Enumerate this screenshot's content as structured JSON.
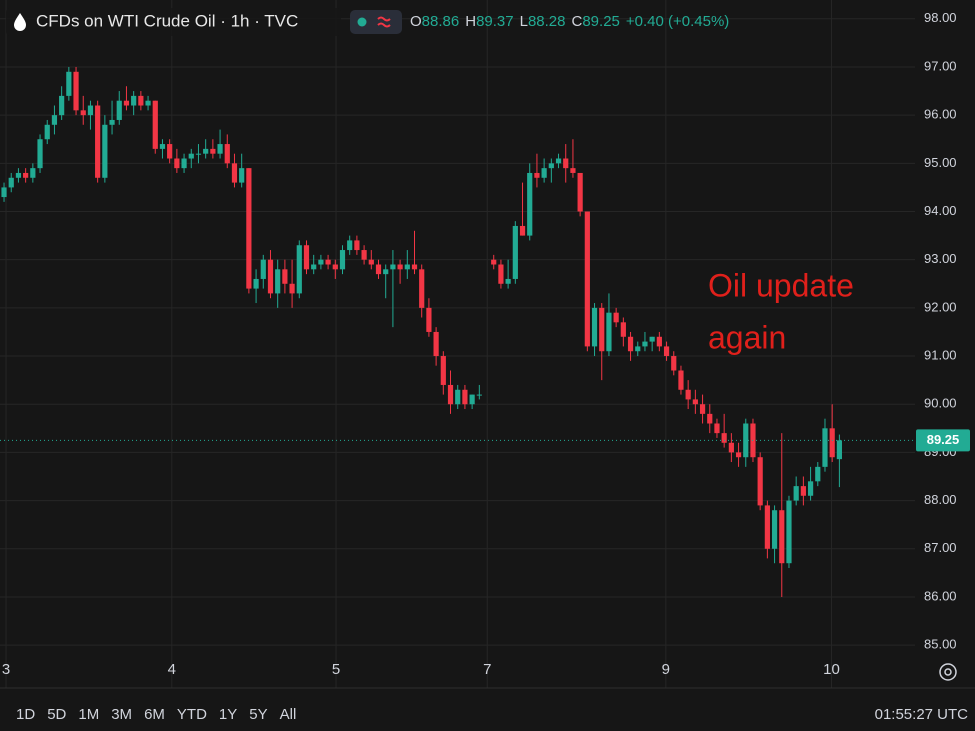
{
  "chart_data": {
    "type": "candlestick",
    "title": "CFDs on WTI Crude Oil · 1h · TVC",
    "ohlc_labels": [
      "O",
      "H",
      "L",
      "C"
    ],
    "change_label": "+0.40 (+0.45%)",
    "annotation": "Oil update again",
    "up_color": "#22ab94",
    "down_color": "#f23645",
    "candles": [
      [
        94.3,
        94.6,
        94.2,
        94.5
      ],
      [
        94.5,
        94.8,
        94.4,
        94.7
      ],
      [
        94.7,
        94.9,
        94.6,
        94.8
      ],
      [
        94.8,
        94.9,
        94.6,
        94.7
      ],
      [
        94.7,
        95.0,
        94.6,
        94.9
      ],
      [
        94.9,
        95.6,
        94.8,
        95.5
      ],
      [
        95.5,
        95.9,
        95.4,
        95.8
      ],
      [
        95.8,
        96.2,
        95.6,
        96.0
      ],
      [
        96.0,
        96.6,
        95.9,
        96.4
      ],
      [
        96.4,
        97.0,
        96.3,
        96.9
      ],
      [
        96.9,
        97.0,
        96.0,
        96.1
      ],
      [
        96.1,
        96.4,
        95.8,
        96.0
      ],
      [
        96.0,
        96.3,
        95.7,
        96.2
      ],
      [
        96.2,
        96.3,
        94.6,
        94.7
      ],
      [
        94.7,
        96.0,
        94.6,
        95.8
      ],
      [
        95.8,
        96.3,
        95.6,
        95.9
      ],
      [
        95.9,
        96.5,
        95.8,
        96.3
      ],
      [
        96.3,
        96.6,
        96.1,
        96.2
      ],
      [
        96.2,
        96.5,
        96.0,
        96.4
      ],
      [
        96.4,
        96.5,
        96.1,
        96.2
      ],
      [
        96.2,
        96.4,
        96.1,
        96.3
      ],
      [
        96.3,
        96.3,
        95.2,
        95.3
      ],
      [
        95.3,
        95.5,
        95.1,
        95.4
      ],
      [
        95.4,
        95.5,
        95.0,
        95.1
      ],
      [
        95.1,
        95.3,
        94.8,
        94.9
      ],
      [
        94.9,
        95.2,
        94.8,
        95.1
      ],
      [
        95.1,
        95.3,
        94.9,
        95.2
      ],
      [
        95.2,
        95.4,
        95.0,
        95.2
      ],
      [
        95.2,
        95.5,
        95.1,
        95.3
      ],
      [
        95.3,
        95.5,
        95.1,
        95.2
      ],
      [
        95.2,
        95.7,
        95.1,
        95.4
      ],
      [
        95.4,
        95.6,
        94.9,
        95.0
      ],
      [
        95.0,
        95.2,
        94.5,
        94.6
      ],
      [
        94.6,
        95.2,
        94.5,
        94.9
      ],
      [
        94.9,
        94.9,
        92.3,
        92.4
      ],
      [
        92.4,
        92.8,
        92.1,
        92.6
      ],
      [
        92.6,
        93.1,
        92.4,
        93.0
      ],
      [
        93.0,
        93.2,
        92.2,
        92.3
      ],
      [
        92.3,
        93.0,
        92.0,
        92.8
      ],
      [
        92.8,
        93.0,
        92.3,
        92.5
      ],
      [
        92.5,
        93.0,
        92.0,
        92.3
      ],
      [
        92.3,
        93.4,
        92.2,
        93.3
      ],
      [
        93.3,
        93.4,
        92.7,
        92.8
      ],
      [
        92.8,
        93.1,
        92.7,
        92.9
      ],
      [
        92.9,
        93.1,
        92.8,
        93.0
      ],
      [
        93.0,
        93.1,
        92.8,
        92.9
      ],
      [
        92.9,
        93.0,
        92.6,
        92.8
      ],
      [
        92.8,
        93.3,
        92.7,
        93.2
      ],
      [
        93.2,
        93.5,
        93.1,
        93.4
      ],
      [
        93.4,
        93.5,
        93.1,
        93.2
      ],
      [
        93.2,
        93.3,
        92.9,
        93.0
      ],
      [
        93.0,
        93.2,
        92.8,
        92.9
      ],
      [
        92.9,
        93.0,
        92.6,
        92.7
      ],
      [
        92.7,
        92.9,
        92.2,
        92.8
      ],
      [
        92.8,
        93.2,
        91.6,
        92.9
      ],
      [
        92.9,
        93.0,
        92.5,
        92.8
      ],
      [
        92.8,
        93.2,
        92.6,
        92.9
      ],
      [
        92.9,
        93.6,
        92.7,
        92.8
      ],
      [
        92.8,
        92.9,
        91.8,
        92.0
      ],
      [
        92.0,
        92.2,
        91.4,
        91.5
      ],
      [
        91.5,
        91.6,
        90.8,
        91.0
      ],
      [
        91.0,
        91.1,
        90.2,
        90.4
      ],
      [
        90.4,
        90.7,
        89.8,
        90.0
      ],
      [
        90.0,
        90.4,
        89.9,
        90.3
      ],
      [
        90.3,
        90.4,
        89.9,
        90.0
      ],
      [
        90.0,
        90.2,
        89.9,
        90.2
      ],
      [
        90.2,
        90.4,
        90.1,
        90.2
      ],
      null,
      [
        93.0,
        93.1,
        92.8,
        92.9
      ],
      [
        92.9,
        93.0,
        92.4,
        92.5
      ],
      [
        92.5,
        93.0,
        92.4,
        92.6
      ],
      [
        92.6,
        93.8,
        92.5,
        93.7
      ],
      [
        93.7,
        94.6,
        93.5,
        93.5
      ],
      [
        93.5,
        95.0,
        93.4,
        94.8
      ],
      [
        94.8,
        95.2,
        94.5,
        94.7
      ],
      [
        94.7,
        95.1,
        94.6,
        94.9
      ],
      [
        94.9,
        95.1,
        94.6,
        95.0
      ],
      [
        95.0,
        95.2,
        94.9,
        95.1
      ],
      [
        95.1,
        95.4,
        94.6,
        94.9
      ],
      [
        94.9,
        95.5,
        94.7,
        94.8
      ],
      [
        94.8,
        94.8,
        93.9,
        94.0
      ],
      [
        94.0,
        94.0,
        91.1,
        91.2
      ],
      [
        91.2,
        92.1,
        91.0,
        92.0
      ],
      [
        92.0,
        92.1,
        90.5,
        91.1
      ],
      [
        91.1,
        92.3,
        91.0,
        91.9
      ],
      [
        91.9,
        92.0,
        91.6,
        91.7
      ],
      [
        91.7,
        91.8,
        91.2,
        91.4
      ],
      [
        91.4,
        91.5,
        90.9,
        91.1
      ],
      [
        91.1,
        91.3,
        91.0,
        91.2
      ],
      [
        91.2,
        91.5,
        91.1,
        91.3
      ],
      [
        91.3,
        91.4,
        91.1,
        91.4
      ],
      [
        91.4,
        91.5,
        91.1,
        91.2
      ],
      [
        91.2,
        91.3,
        90.9,
        91.0
      ],
      [
        91.0,
        91.1,
        90.6,
        90.7
      ],
      [
        90.7,
        90.8,
        90.2,
        90.3
      ],
      [
        90.3,
        90.5,
        89.9,
        90.1
      ],
      [
        90.1,
        90.3,
        89.8,
        90.0
      ],
      [
        90.0,
        90.2,
        89.6,
        89.8
      ],
      [
        89.8,
        90.0,
        89.4,
        89.6
      ],
      [
        89.6,
        89.7,
        89.3,
        89.4
      ],
      [
        89.4,
        89.8,
        89.1,
        89.2
      ],
      [
        89.2,
        89.4,
        88.8,
        89.0
      ],
      [
        89.0,
        89.2,
        88.7,
        88.9
      ],
      [
        88.9,
        89.7,
        88.7,
        89.6
      ],
      [
        89.6,
        89.7,
        88.8,
        88.9
      ],
      [
        88.9,
        89.0,
        87.8,
        87.9
      ],
      [
        87.9,
        88.0,
        86.8,
        87.0
      ],
      [
        87.0,
        87.9,
        86.7,
        87.8
      ],
      [
        87.8,
        89.4,
        86.0,
        86.7
      ],
      [
        86.7,
        88.1,
        86.6,
        88.0
      ],
      [
        88.0,
        88.5,
        87.9,
        88.3
      ],
      [
        88.3,
        88.5,
        87.9,
        88.1
      ],
      [
        88.1,
        88.7,
        88.0,
        88.4
      ],
      [
        88.4,
        88.8,
        88.3,
        88.7
      ],
      [
        88.7,
        89.7,
        88.6,
        89.5
      ],
      [
        89.5,
        90.0,
        88.8,
        88.9
      ],
      [
        88.86,
        89.37,
        88.28,
        89.25
      ]
    ],
    "last_price": 89.25,
    "xlim": [
      -0.56,
      126.5
    ],
    "xticks": [
      {
        "value": 0.28,
        "label": "3"
      },
      {
        "value": 23.3,
        "label": "4"
      },
      {
        "value": 46.1,
        "label": "5"
      },
      {
        "value": 67.1,
        "label": "7"
      },
      {
        "value": 91.9,
        "label": "9"
      },
      {
        "value": 114.9,
        "label": "10"
      }
    ],
    "ylim": [
      84.11,
      98.39
    ],
    "yticks": [
      {
        "value": 85,
        "label": "85.00"
      },
      {
        "value": 86,
        "label": "86.00"
      },
      {
        "value": 87,
        "label": "87.00"
      },
      {
        "value": 88,
        "label": "88.00"
      },
      {
        "value": 89,
        "label": "89.00"
      },
      {
        "value": 90,
        "label": "90.00"
      },
      {
        "value": 91,
        "label": "91.00"
      },
      {
        "value": 92,
        "label": "92.00"
      },
      {
        "value": 93,
        "label": "93.00"
      },
      {
        "value": 94,
        "label": "94.00"
      },
      {
        "value": 95,
        "label": "95.00"
      },
      {
        "value": 96,
        "label": "96.00"
      },
      {
        "value": 97,
        "label": "97.00"
      },
      {
        "value": 98,
        "label": "98.00"
      }
    ],
    "grid": true,
    "ranges": [
      "1D",
      "5D",
      "1M",
      "3M",
      "6M",
      "YTD",
      "1Y",
      "5Y",
      "All"
    ],
    "clock": "01:55:27 UTC"
  }
}
